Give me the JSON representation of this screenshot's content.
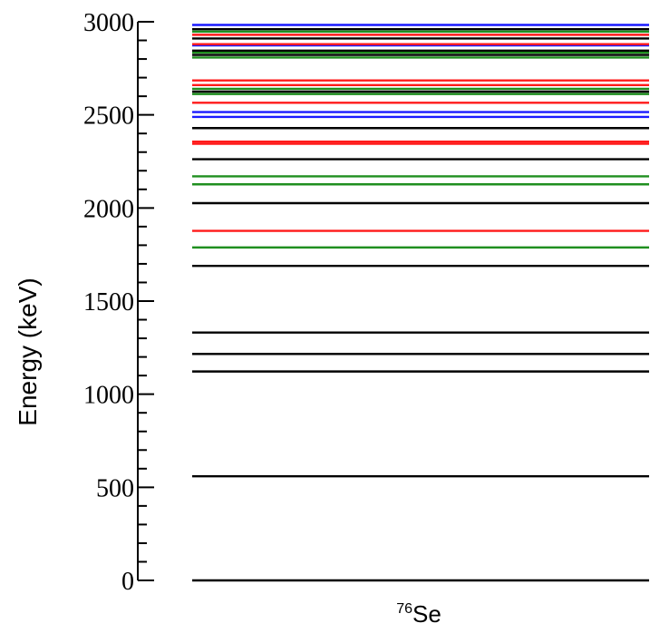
{
  "chart_data": {
    "type": "level-scheme",
    "title": "",
    "ylabel": "Energy (keV)",
    "xlabel": "",
    "ylim": [
      0,
      3000
    ],
    "yticks": [
      "0",
      "500",
      "1000",
      "1500",
      "2000",
      "2500",
      "3000"
    ],
    "category": {
      "superscript": "76",
      "label": "Se"
    },
    "grid": false,
    "colors": {
      "black": "#000000",
      "red": "#ff1a1a",
      "green": "#1f8f1f",
      "blue": "#1a1aff"
    },
    "levels": [
      {
        "energy": 0,
        "color": "black"
      },
      {
        "energy": 559,
        "color": "black"
      },
      {
        "energy": 1122,
        "color": "black"
      },
      {
        "energy": 1216,
        "color": "black"
      },
      {
        "energy": 1331,
        "color": "black"
      },
      {
        "energy": 1689,
        "color": "black"
      },
      {
        "energy": 1788,
        "color": "green"
      },
      {
        "energy": 1877,
        "color": "red"
      },
      {
        "energy": 2026,
        "color": "black"
      },
      {
        "energy": 2127,
        "color": "green"
      },
      {
        "energy": 2170,
        "color": "green"
      },
      {
        "energy": 2262,
        "color": "black"
      },
      {
        "energy": 2345,
        "color": "red"
      },
      {
        "energy": 2356,
        "color": "red"
      },
      {
        "energy": 2429,
        "color": "black"
      },
      {
        "energy": 2489,
        "color": "blue"
      },
      {
        "energy": 2515,
        "color": "blue"
      },
      {
        "energy": 2565,
        "color": "red"
      },
      {
        "energy": 2612,
        "color": "green"
      },
      {
        "energy": 2625,
        "color": "black"
      },
      {
        "energy": 2640,
        "color": "green"
      },
      {
        "energy": 2660,
        "color": "red"
      },
      {
        "energy": 2685,
        "color": "red"
      },
      {
        "energy": 2808,
        "color": "green"
      },
      {
        "energy": 2822,
        "color": "black"
      },
      {
        "energy": 2835,
        "color": "green"
      },
      {
        "energy": 2845,
        "color": "black"
      },
      {
        "energy": 2873,
        "color": "blue"
      },
      {
        "energy": 2880,
        "color": "red"
      },
      {
        "energy": 2910,
        "color": "black"
      },
      {
        "energy": 2930,
        "color": "red"
      },
      {
        "energy": 2947,
        "color": "green"
      },
      {
        "energy": 2960,
        "color": "black"
      },
      {
        "energy": 2983,
        "color": "blue"
      }
    ]
  }
}
